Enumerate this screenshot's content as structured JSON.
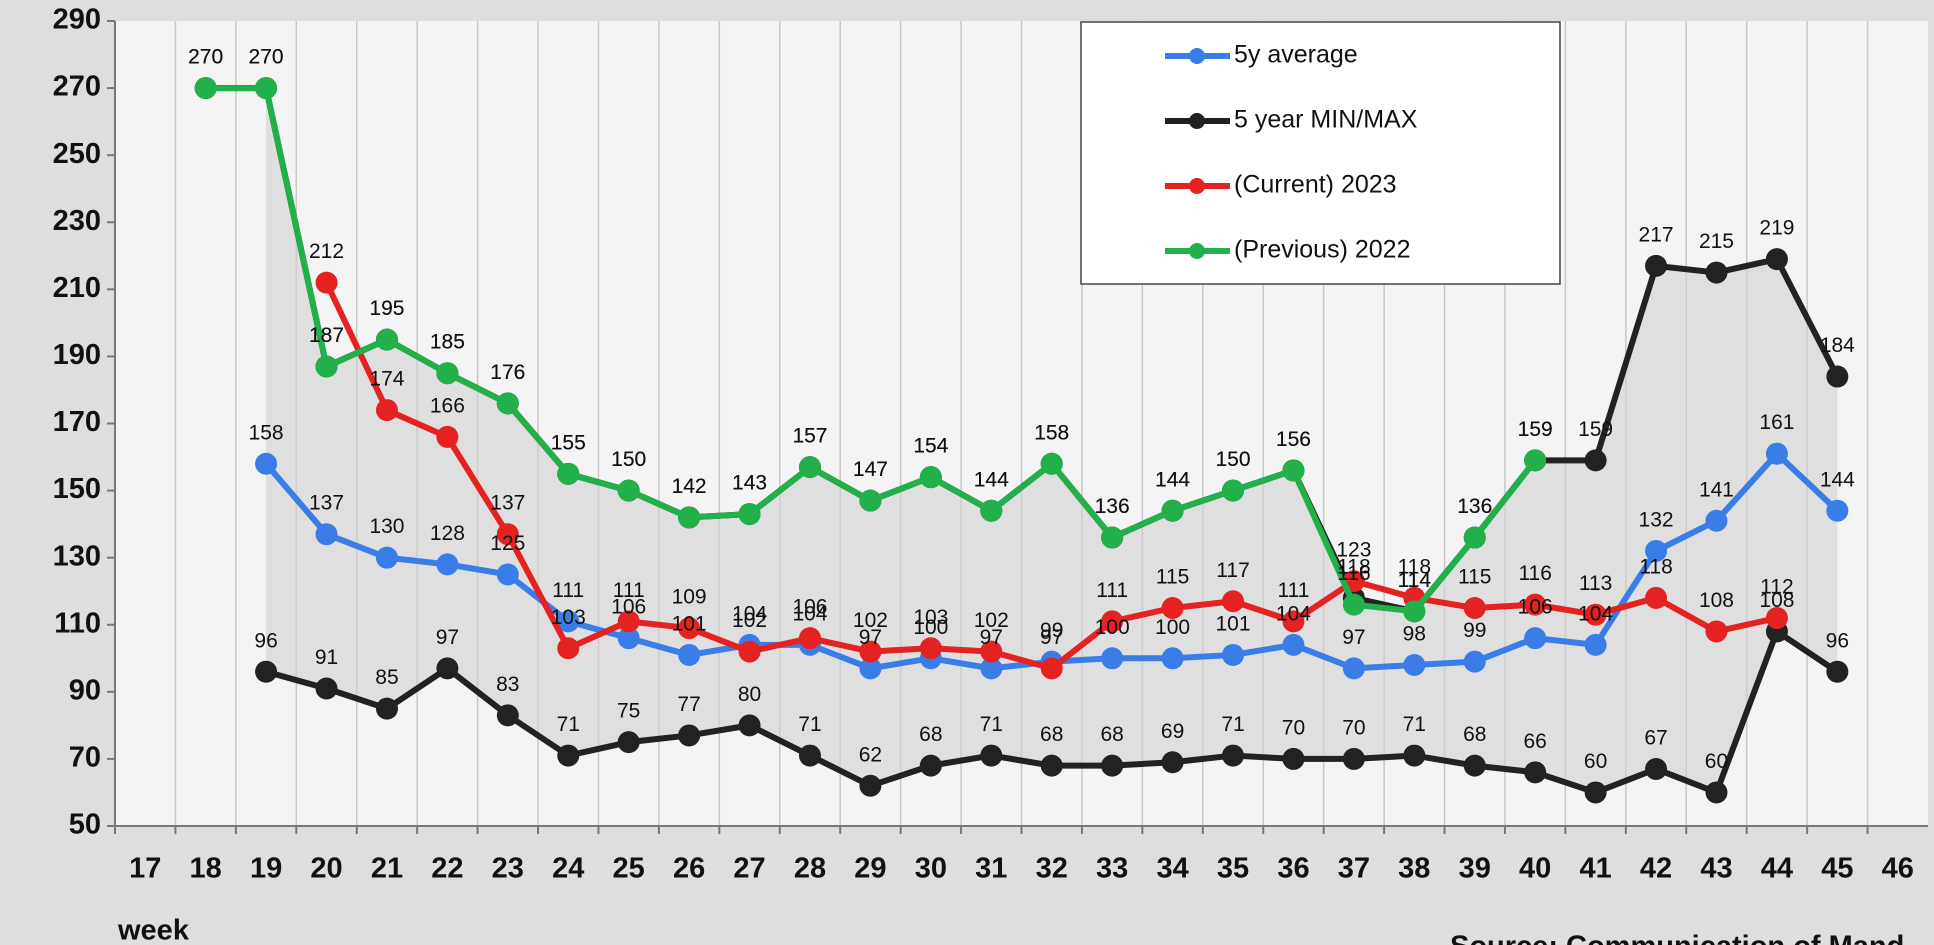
{
  "chart_data": {
    "type": "line",
    "categories": [
      "17",
      "18",
      "19",
      "20",
      "21",
      "22",
      "23",
      "24",
      "25",
      "26",
      "27",
      "28",
      "29",
      "30",
      "31",
      "32",
      "33",
      "34",
      "35",
      "36",
      "37",
      "38",
      "39",
      "40",
      "41",
      "42",
      "43",
      "44",
      "45",
      "46"
    ],
    "x_label": "week",
    "source": "Source: Communication of Mand",
    "ylim": [
      50,
      290
    ],
    "yticks": [
      50,
      70,
      90,
      110,
      130,
      150,
      170,
      190,
      210,
      230,
      250,
      270,
      290
    ],
    "grid": true,
    "series": [
      {
        "name": "5y average",
        "color": "#3a7de6",
        "values": [
          null,
          null,
          158,
          137,
          130,
          128,
          125,
          111,
          106,
          101,
          104,
          104,
          97,
          100,
          97,
          99,
          100,
          100,
          101,
          104,
          97,
          98,
          99,
          106,
          104,
          132,
          141,
          161,
          144,
          null
        ]
      },
      {
        "name": "5 year MIN/MAX",
        "color": "#222222",
        "high": [
          null,
          270,
          270,
          187,
          195,
          185,
          176,
          155,
          150,
          142,
          143,
          157,
          147,
          154,
          144,
          158,
          136,
          144,
          150,
          156,
          118,
          114,
          136,
          159,
          159,
          217,
          215,
          219,
          184,
          null
        ],
        "low": [
          null,
          null,
          96,
          91,
          85,
          97,
          83,
          71,
          75,
          77,
          80,
          71,
          62,
          68,
          71,
          68,
          68,
          69,
          71,
          70,
          70,
          71,
          68,
          66,
          60,
          67,
          60,
          108,
          96,
          null
        ]
      },
      {
        "name": "(Current) 2023",
        "color": "#e52222",
        "values": [
          null,
          null,
          null,
          212,
          174,
          166,
          137,
          103,
          111,
          109,
          102,
          106,
          102,
          103,
          102,
          97,
          111,
          115,
          117,
          111,
          123,
          118,
          115,
          116,
          113,
          118,
          108,
          112,
          null,
          null
        ]
      },
      {
        "name": "(Previous) 2022",
        "color": "#22b04a",
        "values": [
          null,
          270,
          270,
          187,
          195,
          185,
          176,
          155,
          150,
          142,
          143,
          157,
          147,
          154,
          144,
          158,
          136,
          144,
          150,
          156,
          116,
          114,
          136,
          159,
          null,
          null,
          null,
          null,
          null,
          null
        ]
      }
    ]
  }
}
